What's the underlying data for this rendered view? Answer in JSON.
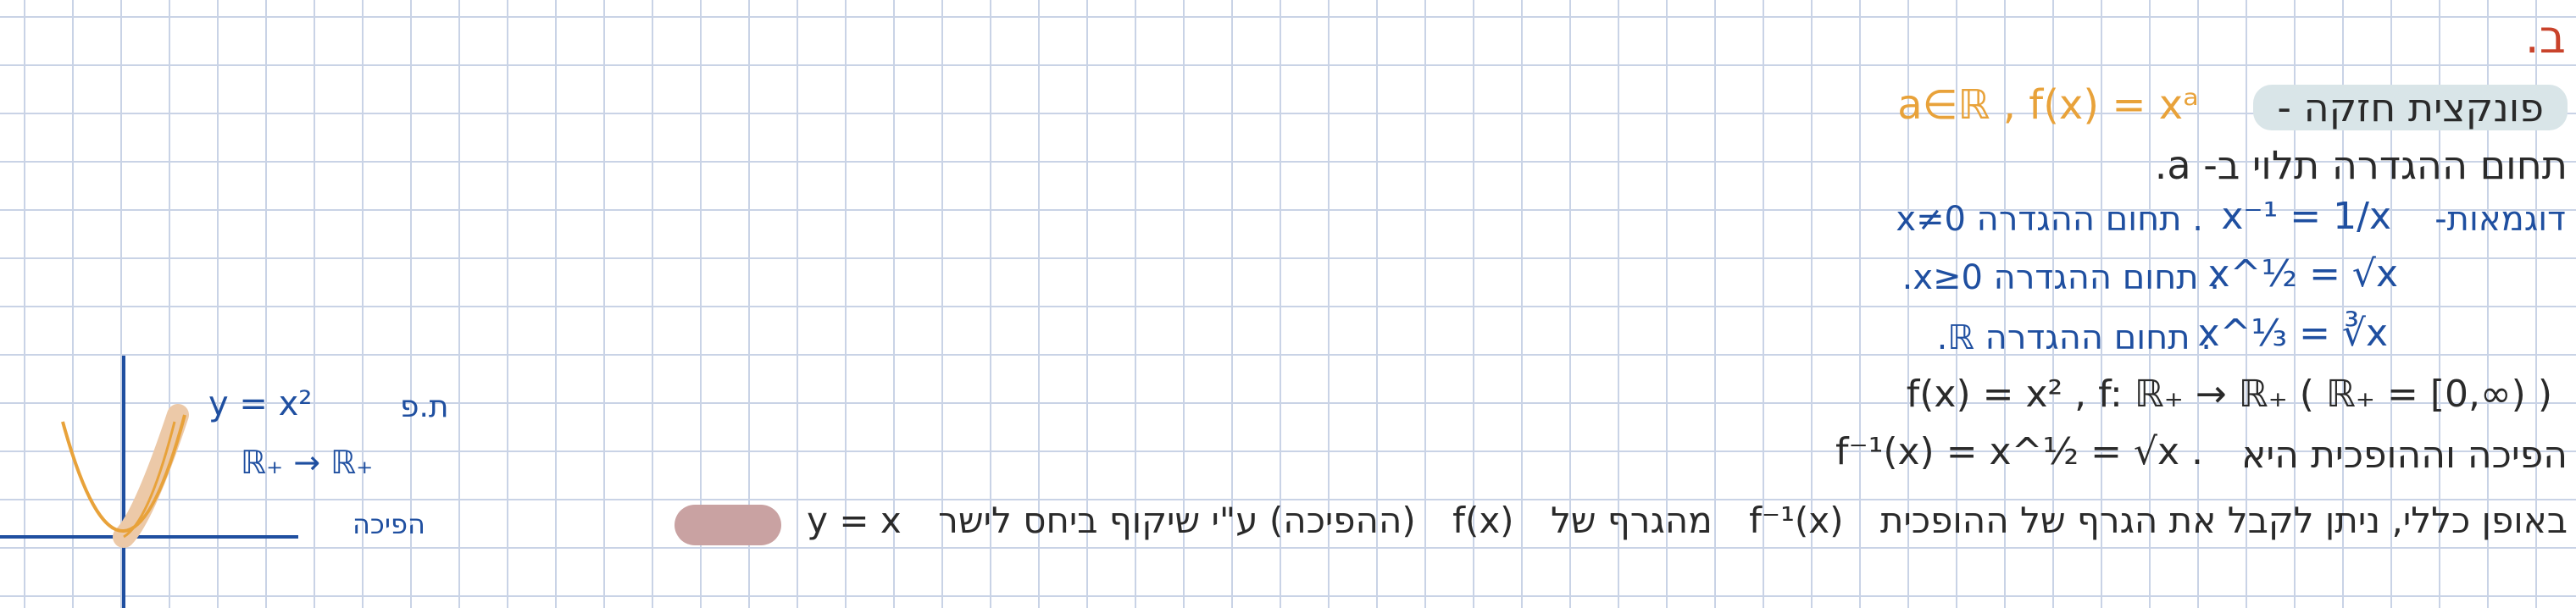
{
  "section_letter": "ב.",
  "lines": {
    "l1_title": "פונקצית חזקה -",
    "l1_formula": "a∈ℝ , f(x) = xᵃ",
    "l2": "תחום ההגדרה תלוי ב- a.",
    "l3_label": "דוגמאות-",
    "l3_formula": "x⁻¹ = 1/x",
    "l3_domain": ". תחום ההגדרה x≠0",
    "l4_formula": "x^½ = √x",
    "l4_domain": ". תחום ההגדרה x≥0.",
    "l5_formula": "x^⅓ = ∛x",
    "l5_domain": ". תחום ההגדרה ℝ.",
    "l6": "f(x) = x² , f: ℝ₊ → ℝ₊  ( ℝ₊ = [0,∞) )",
    "l7_text": "הפיכה וההופכית היא",
    "l7_formula": "f⁻¹(x) = x^½ = √x .",
    "l8_text_a": "באופן כללי, ניתן לקבל את הגרף של ההופכית",
    "l8_fx_inv": "f⁻¹(x)",
    "l8_text_b": "מהגרף של",
    "l8_fx": "f(x)",
    "l8_text_c": "(ההפיכה) ע\"י שיקוף ביחס לישר",
    "l8_line": "y = x"
  },
  "sketch": {
    "label_tp": "ת.פ",
    "equation": "y = x²",
    "mapping": "ℝ₊ → ℝ₊",
    "caption": "הפיכה"
  },
  "colors": {
    "ink": "#2a2a2a",
    "blue": "#1f4fa0",
    "orange": "#e8a23a",
    "red": "#c9432b",
    "highlight": "#d9e5e8",
    "pill": "#c9a2a2"
  }
}
